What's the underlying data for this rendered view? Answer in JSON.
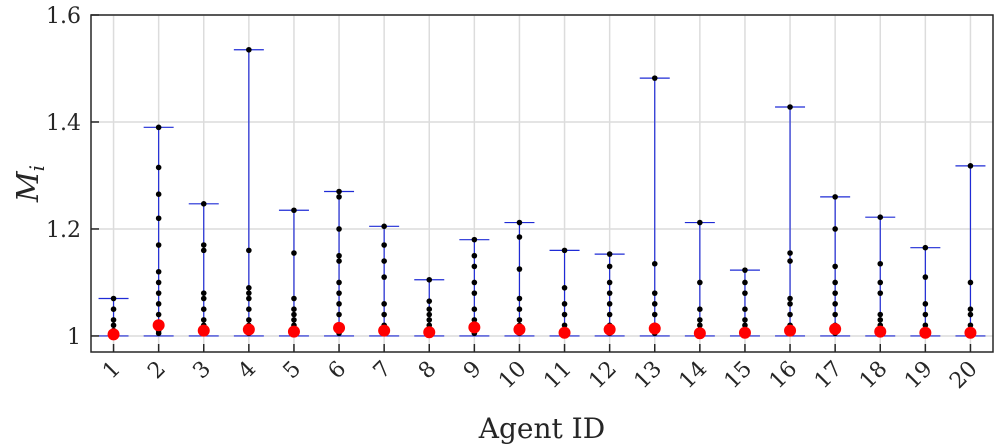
{
  "chart_data": {
    "type": "scatter",
    "xlabel": "Agent ID",
    "ylabel_script": "M",
    "ylabel_subscript": "i",
    "categories": [
      "1",
      "2",
      "3",
      "4",
      "5",
      "6",
      "7",
      "8",
      "9",
      "10",
      "11",
      "12",
      "13",
      "14",
      "15",
      "16",
      "17",
      "18",
      "19",
      "20"
    ],
    "ylim": [
      0.97,
      1.6
    ],
    "yticks": [
      1,
      1.2,
      1.4,
      1.6
    ],
    "ytick_labels": [
      "1",
      "1.2",
      "1.4",
      "1.6"
    ],
    "grid": true,
    "colors": {
      "range": "#1f2bd6",
      "points": "#000000",
      "mean": "#ff0000",
      "grid": "#dcdcdc",
      "axis": "#262626"
    },
    "series": [
      {
        "kind": "range",
        "min": [
          1,
          1,
          1,
          1,
          1,
          1,
          1,
          1,
          1,
          1,
          1,
          1,
          1,
          1,
          1,
          1,
          1,
          1,
          1,
          1
        ],
        "max": [
          1.07,
          1.39,
          1.247,
          1.535,
          1.235,
          1.27,
          1.205,
          1.105,
          1.18,
          1.212,
          1.16,
          1.153,
          1.482,
          1.212,
          1.123,
          1.428,
          1.26,
          1.222,
          1.165,
          1.318
        ]
      },
      {
        "kind": "points",
        "values": [
          [
            1.005,
            1.01,
            1.02,
            1.03,
            1.05,
            1.07
          ],
          [
            1.005,
            1.01,
            1.02,
            1.04,
            1.06,
            1.08,
            1.1,
            1.12,
            1.17,
            1.22,
            1.265,
            1.315,
            1.39
          ],
          [
            1.005,
            1.01,
            1.02,
            1.03,
            1.05,
            1.07,
            1.08,
            1.16,
            1.17,
            1.247
          ],
          [
            1.005,
            1.01,
            1.02,
            1.03,
            1.05,
            1.07,
            1.08,
            1.09,
            1.16,
            1.535
          ],
          [
            1.005,
            1.01,
            1.02,
            1.03,
            1.04,
            1.05,
            1.07,
            1.155,
            1.235
          ],
          [
            1.005,
            1.01,
            1.02,
            1.04,
            1.06,
            1.08,
            1.1,
            1.14,
            1.15,
            1.2,
            1.26,
            1.27
          ],
          [
            1.005,
            1.01,
            1.02,
            1.04,
            1.06,
            1.11,
            1.14,
            1.17,
            1.205
          ],
          [
            1.005,
            1.01,
            1.02,
            1.03,
            1.04,
            1.05,
            1.065,
            1.105
          ],
          [
            1.005,
            1.02,
            1.03,
            1.05,
            1.08,
            1.1,
            1.13,
            1.15,
            1.18
          ],
          [
            1.005,
            1.01,
            1.02,
            1.03,
            1.05,
            1.07,
            1.125,
            1.185,
            1.212
          ],
          [
            1.005,
            1.01,
            1.02,
            1.04,
            1.06,
            1.09,
            1.16
          ],
          [
            1.005,
            1.01,
            1.02,
            1.04,
            1.06,
            1.08,
            1.1,
            1.13,
            1.153
          ],
          [
            1.005,
            1.01,
            1.02,
            1.04,
            1.06,
            1.08,
            1.135,
            1.482
          ],
          [
            1.005,
            1.01,
            1.02,
            1.03,
            1.05,
            1.1,
            1.212
          ],
          [
            1.005,
            1.01,
            1.02,
            1.03,
            1.05,
            1.08,
            1.1,
            1.123
          ],
          [
            1.005,
            1.01,
            1.02,
            1.04,
            1.06,
            1.07,
            1.14,
            1.155,
            1.428
          ],
          [
            1.005,
            1.01,
            1.02,
            1.04,
            1.06,
            1.08,
            1.1,
            1.13,
            1.2,
            1.26
          ],
          [
            1.005,
            1.01,
            1.02,
            1.03,
            1.04,
            1.08,
            1.1,
            1.135,
            1.222
          ],
          [
            1.005,
            1.01,
            1.02,
            1.04,
            1.06,
            1.11,
            1.165
          ],
          [
            1.005,
            1.01,
            1.02,
            1.04,
            1.05,
            1.1,
            1.318
          ]
        ]
      },
      {
        "kind": "mean",
        "values": [
          1.003,
          1.02,
          1.01,
          1.012,
          1.008,
          1.015,
          1.01,
          1.007,
          1.016,
          1.012,
          1.006,
          1.012,
          1.014,
          1.005,
          1.006,
          1.01,
          1.013,
          1.008,
          1.006,
          1.006
        ]
      }
    ]
  }
}
